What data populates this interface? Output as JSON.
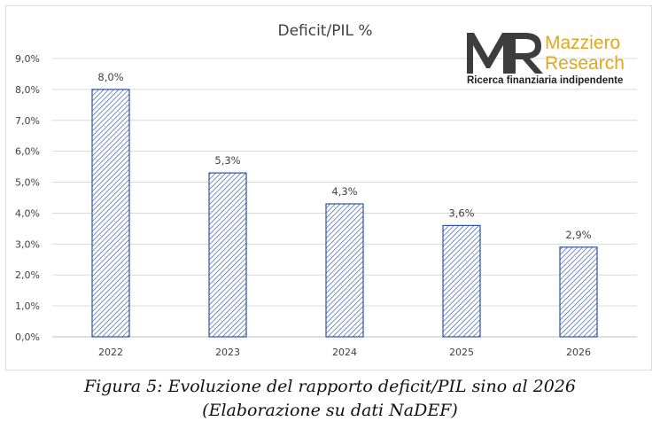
{
  "chart_data": {
    "type": "bar",
    "title": "Deficit/PIL %",
    "categories": [
      "2022",
      "2023",
      "2024",
      "2025",
      "2026"
    ],
    "values": [
      8.0,
      5.3,
      4.3,
      3.6,
      2.9
    ],
    "data_labels": [
      "8,0%",
      "5,3%",
      "4,3%",
      "3,6%",
      "2,9%"
    ],
    "y_ticks": [
      "0,0%",
      "1,0%",
      "2,0%",
      "3,0%",
      "4,0%",
      "5,0%",
      "6,0%",
      "7,0%",
      "8,0%",
      "9,0%"
    ],
    "ylim": [
      0,
      9
    ],
    "xlabel": "",
    "ylabel": "",
    "grid": true,
    "legend": "none",
    "bar_fill": "diagonal-hatch",
    "bar_color": "#2f52a8"
  },
  "logo": {
    "monogram": "MR",
    "name_line1": "Mazziero",
    "name_line2": "Research",
    "tagline": "Ricerca finanziaria indipendente",
    "monogram_color": "#3d3d3d",
    "name_color": "#e3a71a"
  },
  "caption": {
    "line1": "Figura 5: Evoluzione del rapporto deficit/PIL sino al 2026",
    "line2": "(Elaborazione su dati NaDEF)"
  }
}
